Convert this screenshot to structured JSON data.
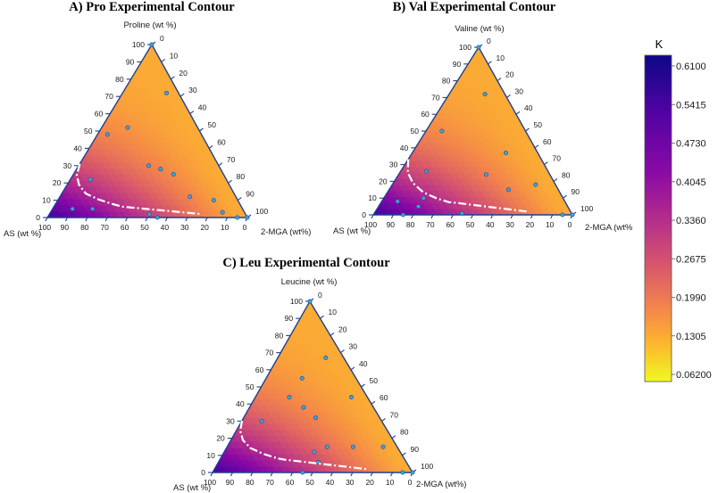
{
  "chart_data": {
    "type": "ternary-contour",
    "colorbar": {
      "title": "K",
      "ticks": [
        "0.6100",
        "0.5415",
        "0.4730",
        "0.4045",
        "0.3360",
        "0.2675",
        "0.1990",
        "0.1305",
        "0.06200"
      ],
      "range": [
        0.062,
        0.61
      ]
    },
    "panels": [
      {
        "id": "pro",
        "title": "A) Pro Experimental Contour",
        "top_label": "Proline (wt %)",
        "left_label": "AS (wt %)",
        "right_label": "2-MGA (wt%)",
        "ticks": [
          "0",
          "10",
          "20",
          "30",
          "40",
          "50",
          "60",
          "70",
          "80",
          "90",
          "100"
        ],
        "points": [
          [
            72,
            22
          ],
          [
            52,
            13
          ],
          [
            48,
            5
          ],
          [
            30,
            35
          ],
          [
            28,
            42
          ],
          [
            25,
            50
          ],
          [
            22,
            10
          ],
          [
            12,
            65
          ],
          [
            10,
            78
          ],
          [
            5,
            10
          ],
          [
            5,
            20
          ],
          [
            3,
            86
          ],
          [
            2,
            50
          ],
          [
            0,
            55
          ],
          [
            0,
            95
          ],
          [
            0,
            100
          ],
          [
            100,
            0
          ]
        ],
        "boundary": [
          [
            0,
            0.74
          ],
          [
            0.02,
            0.58
          ],
          [
            0.06,
            0.45
          ],
          [
            0.12,
            0.33
          ],
          [
            0.2,
            0.25
          ],
          [
            0.28,
            0.19
          ],
          [
            0.34,
            0.15
          ]
        ]
      },
      {
        "id": "val",
        "title": "B) Val Experimental Contour",
        "top_label": "Valine (wt %)",
        "left_label": "AS (wt %)",
        "right_label": "2-MGA (wt%",
        "ticks": [
          "0",
          "10",
          "20",
          "30",
          "40",
          "50",
          "60",
          "70",
          "80",
          "90",
          "100"
        ],
        "points": [
          [
            72,
            18
          ],
          [
            50,
            8
          ],
          [
            37,
            47
          ],
          [
            26,
            13
          ],
          [
            24,
            44
          ],
          [
            18,
            72
          ],
          [
            15,
            60
          ],
          [
            10,
            20
          ],
          [
            8,
            8
          ],
          [
            5,
            20
          ],
          [
            1,
            44
          ],
          [
            0,
            15
          ],
          [
            0,
            95
          ],
          [
            0,
            100
          ],
          [
            100,
            0
          ]
        ],
        "boundary": [
          [
            0,
            0.79
          ],
          [
            0.04,
            0.6
          ],
          [
            0.1,
            0.45
          ],
          [
            0.18,
            0.32
          ],
          [
            0.26,
            0.24
          ],
          [
            0.34,
            0.18
          ],
          [
            0.38,
            0.17
          ]
        ]
      },
      {
        "id": "leu",
        "title": "C) Leu Experimental Contour",
        "top_label": "Leucine (wt %)",
        "left_label": "AS (wt %)",
        "right_label": "2-MGA (wt%)",
        "ticks": [
          "0",
          "10",
          "20",
          "30",
          "40",
          "50",
          "60",
          "70",
          "80",
          "90",
          "100"
        ],
        "points": [
          [
            67,
            24
          ],
          [
            55,
            18
          ],
          [
            44,
            17
          ],
          [
            44,
            48
          ],
          [
            38,
            27
          ],
          [
            32,
            36
          ],
          [
            30,
            10
          ],
          [
            15,
            50
          ],
          [
            15,
            63
          ],
          [
            15,
            78
          ],
          [
            12,
            45
          ],
          [
            6,
            50
          ],
          [
            0,
            45
          ],
          [
            0,
            95
          ],
          [
            0,
            100
          ],
          [
            100,
            0
          ]
        ],
        "boundary": [
          [
            0,
            0.72
          ],
          [
            0.02,
            0.58
          ],
          [
            0.06,
            0.45
          ],
          [
            0.12,
            0.34
          ],
          [
            0.2,
            0.26
          ],
          [
            0.28,
            0.2
          ],
          [
            0.32,
            0.18
          ]
        ]
      }
    ]
  }
}
